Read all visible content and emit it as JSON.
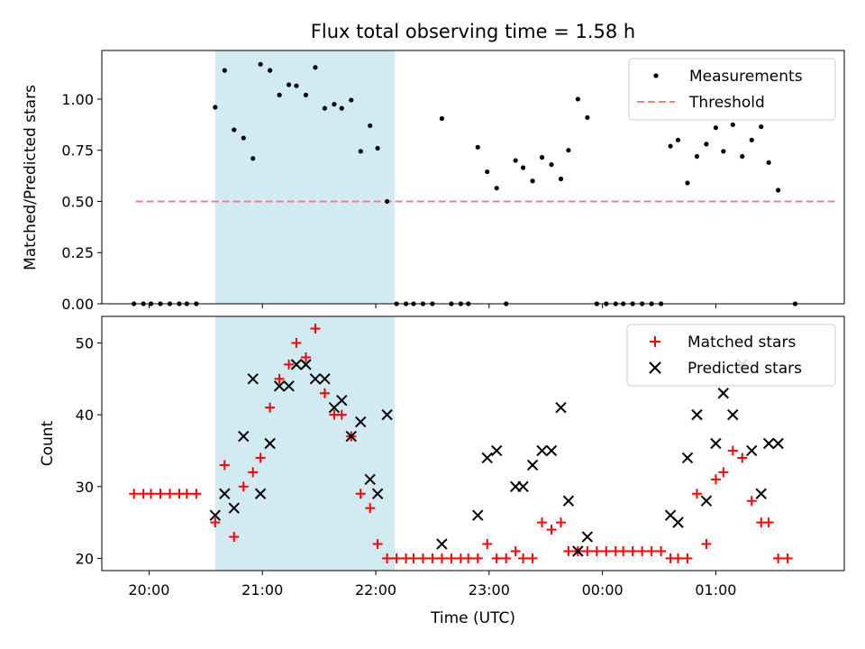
{
  "chart_data": [
    {
      "type": "scatter",
      "title": "Flux total observing time = 1.58 h",
      "ylabel": "Matched/Predicted stars",
      "xlim": [
        "19:35",
        "02:08"
      ],
      "ylim": [
        0,
        1.2375
      ],
      "yticks": [
        "0.00",
        "0.25",
        "0.50",
        "0.75",
        "1.00"
      ],
      "shaded_span": [
        "20:35",
        "22:10"
      ],
      "shaded_color": "#add8e6",
      "legend_position": "top-right",
      "threshold": {
        "name": "Threshold",
        "value": 0.5,
        "x_range": [
          "19:53",
          "02:03"
        ],
        "color": "#f08080"
      },
      "series": [
        {
          "name": "Measurements",
          "color": "#000000",
          "points": [
            [
              "19:52",
              0
            ],
            [
              "19:57",
              0
            ],
            [
              "20:01",
              0
            ],
            [
              "20:06",
              0
            ],
            [
              "20:11",
              0
            ],
            [
              "20:16",
              0
            ],
            [
              "20:20",
              0
            ],
            [
              "20:25",
              0
            ],
            [
              "20:35",
              0.96
            ],
            [
              "20:40",
              1.14
            ],
            [
              "20:45",
              0.85
            ],
            [
              "20:50",
              0.81
            ],
            [
              "20:55",
              0.71
            ],
            [
              "20:59",
              1.17
            ],
            [
              "21:04",
              1.14
            ],
            [
              "21:09",
              1.02
            ],
            [
              "21:14",
              1.07
            ],
            [
              "21:18",
              1.065
            ],
            [
              "21:23",
              1.02
            ],
            [
              "21:28",
              1.155
            ],
            [
              "21:33",
              0.955
            ],
            [
              "21:38",
              0.975
            ],
            [
              "21:42",
              0.955
            ],
            [
              "21:47",
              0.995
            ],
            [
              "21:52",
              0.745
            ],
            [
              "21:57",
              0.87
            ],
            [
              "22:01",
              0.76
            ],
            [
              "22:06",
              0.5
            ],
            [
              "22:11",
              0
            ],
            [
              "22:16",
              0
            ],
            [
              "22:20",
              0
            ],
            [
              "22:25",
              0
            ],
            [
              "22:30",
              0
            ],
            [
              "22:35",
              0.905
            ],
            [
              "22:40",
              0
            ],
            [
              "22:45",
              0
            ],
            [
              "22:49",
              0
            ],
            [
              "22:54",
              0.765
            ],
            [
              "22:59",
              0.645
            ],
            [
              "23:04",
              0.565
            ],
            [
              "23:09",
              0
            ],
            [
              "23:14",
              0.7
            ],
            [
              "23:18",
              0.665
            ],
            [
              "23:23",
              0.6
            ],
            [
              "23:28",
              0.715
            ],
            [
              "23:33",
              0.68
            ],
            [
              "23:38",
              0.61
            ],
            [
              "23:42",
              0.75
            ],
            [
              "23:47",
              1.0
            ],
            [
              "23:52",
              0.91
            ],
            [
              "23:57",
              0
            ],
            [
              "00:02",
              0
            ],
            [
              "00:07",
              0
            ],
            [
              "00:11",
              0
            ],
            [
              "00:16",
              0
            ],
            [
              "00:21",
              0
            ],
            [
              "00:26",
              0
            ],
            [
              "00:31",
              0
            ],
            [
              "00:36",
              0.77
            ],
            [
              "00:40",
              0.8
            ],
            [
              "00:45",
              0.59
            ],
            [
              "00:50",
              0.72
            ],
            [
              "00:55",
              0.78
            ],
            [
              "01:00",
              0.86
            ],
            [
              "01:04",
              0.745
            ],
            [
              "01:09",
              0.875
            ],
            [
              "01:14",
              0.72
            ],
            [
              "01:19",
              0.8
            ],
            [
              "01:24",
              0.865
            ],
            [
              "01:28",
              0.69
            ],
            [
              "01:33",
              0.555
            ],
            [
              "01:42",
              0
            ]
          ]
        }
      ]
    },
    {
      "type": "scatter",
      "xlabel": "Time (UTC)",
      "ylabel": "Count",
      "xlim": [
        "19:35",
        "02:08"
      ],
      "ylim": [
        18.3,
        53.7
      ],
      "yticks": [
        "20",
        "30",
        "40",
        "50"
      ],
      "xticks": [
        "20:00",
        "21:00",
        "22:00",
        "23:00",
        "00:00",
        "01:00"
      ],
      "shaded_span": [
        "20:35",
        "22:10"
      ],
      "shaded_color": "#add8e6",
      "legend_position": "top-right",
      "series": [
        {
          "name": "Matched stars",
          "color": "#ff0000",
          "marker": "+",
          "points": [
            [
              "19:52",
              29
            ],
            [
              "19:57",
              29
            ],
            [
              "20:01",
              29
            ],
            [
              "20:06",
              29
            ],
            [
              "20:11",
              29
            ],
            [
              "20:16",
              29
            ],
            [
              "20:20",
              29
            ],
            [
              "20:25",
              29
            ],
            [
              "20:35",
              25
            ],
            [
              "20:40",
              33
            ],
            [
              "20:45",
              23
            ],
            [
              "20:50",
              30
            ],
            [
              "20:55",
              32
            ],
            [
              "20:59",
              34
            ],
            [
              "21:04",
              41
            ],
            [
              "21:09",
              45
            ],
            [
              "21:14",
              47
            ],
            [
              "21:18",
              50
            ],
            [
              "21:23",
              48
            ],
            [
              "21:28",
              52
            ],
            [
              "21:33",
              43
            ],
            [
              "21:38",
              40
            ],
            [
              "21:42",
              40
            ],
            [
              "21:47",
              37
            ],
            [
              "21:52",
              29
            ],
            [
              "21:57",
              27
            ],
            [
              "22:01",
              22
            ],
            [
              "22:06",
              20
            ],
            [
              "22:11",
              20
            ],
            [
              "22:16",
              20
            ],
            [
              "22:20",
              20
            ],
            [
              "22:25",
              20
            ],
            [
              "22:30",
              20
            ],
            [
              "22:35",
              20
            ],
            [
              "22:40",
              20
            ],
            [
              "22:45",
              20
            ],
            [
              "22:49",
              20
            ],
            [
              "22:54",
              20
            ],
            [
              "22:59",
              22
            ],
            [
              "23:04",
              20
            ],
            [
              "23:09",
              20
            ],
            [
              "23:14",
              21
            ],
            [
              "23:18",
              20
            ],
            [
              "23:23",
              20
            ],
            [
              "23:28",
              25
            ],
            [
              "23:33",
              24
            ],
            [
              "23:38",
              25
            ],
            [
              "23:42",
              21
            ],
            [
              "23:47",
              21
            ],
            [
              "23:52",
              21
            ],
            [
              "23:57",
              21
            ],
            [
              "00:02",
              21
            ],
            [
              "00:07",
              21
            ],
            [
              "00:11",
              21
            ],
            [
              "00:16",
              21
            ],
            [
              "00:21",
              21
            ],
            [
              "00:26",
              21
            ],
            [
              "00:31",
              21
            ],
            [
              "00:36",
              20
            ],
            [
              "00:40",
              20
            ],
            [
              "00:45",
              20
            ],
            [
              "00:50",
              29
            ],
            [
              "00:55",
              22
            ],
            [
              "01:00",
              31
            ],
            [
              "01:04",
              32
            ],
            [
              "01:09",
              35
            ],
            [
              "01:14",
              34
            ],
            [
              "01:19",
              28
            ],
            [
              "01:24",
              25
            ],
            [
              "01:28",
              25
            ],
            [
              "01:33",
              20
            ],
            [
              "01:38",
              20
            ]
          ]
        },
        {
          "name": "Predicted stars",
          "color": "#000000",
          "marker": "x",
          "points": [
            [
              "20:35",
              26
            ],
            [
              "20:40",
              29
            ],
            [
              "20:45",
              27
            ],
            [
              "20:50",
              37
            ],
            [
              "20:55",
              45
            ],
            [
              "20:59",
              29
            ],
            [
              "21:04",
              36
            ],
            [
              "21:09",
              44
            ],
            [
              "21:14",
              44
            ],
            [
              "21:18",
              47
            ],
            [
              "21:23",
              47
            ],
            [
              "21:28",
              45
            ],
            [
              "21:33",
              45
            ],
            [
              "21:38",
              41
            ],
            [
              "21:42",
              42
            ],
            [
              "21:47",
              37
            ],
            [
              "21:52",
              39
            ],
            [
              "21:57",
              31
            ],
            [
              "22:01",
              29
            ],
            [
              "22:06",
              40
            ],
            [
              "22:35",
              22
            ],
            [
              "22:54",
              26
            ],
            [
              "22:59",
              34
            ],
            [
              "23:04",
              35
            ],
            [
              "23:14",
              30
            ],
            [
              "23:18",
              30
            ],
            [
              "23:23",
              33
            ],
            [
              "23:28",
              35
            ],
            [
              "23:33",
              35
            ],
            [
              "23:38",
              41
            ],
            [
              "23:42",
              28
            ],
            [
              "23:47",
              21
            ],
            [
              "23:52",
              23
            ],
            [
              "00:36",
              26
            ],
            [
              "00:40",
              25
            ],
            [
              "00:45",
              34
            ],
            [
              "00:50",
              40
            ],
            [
              "00:55",
              28
            ],
            [
              "01:00",
              36
            ],
            [
              "01:04",
              43
            ],
            [
              "01:09",
              40
            ],
            [
              "01:14",
              47
            ],
            [
              "01:19",
              35
            ],
            [
              "01:24",
              29
            ],
            [
              "01:28",
              36
            ],
            [
              "01:33",
              36
            ]
          ]
        }
      ]
    }
  ]
}
